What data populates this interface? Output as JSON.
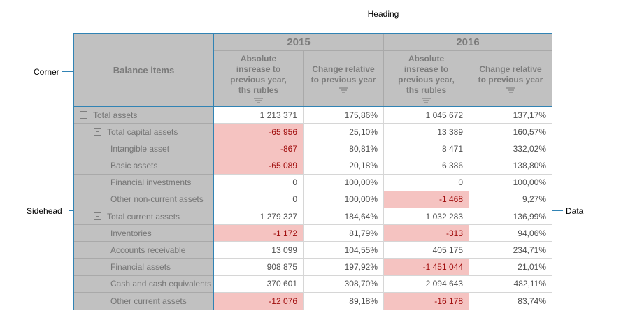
{
  "annotations": {
    "heading": "Heading",
    "corner": "Corner",
    "sidehead": "Sidehead",
    "data": "Data"
  },
  "colors": {
    "accent_blue": "#3183b4",
    "header_background": "#c1c1c1",
    "header_text": "#7b7b7b",
    "negative_cell_background": "#f5c3c1",
    "negative_cell_text": "#a00d0d"
  },
  "icons": {
    "filter_icon": "three shrinking horizontal bars (filter funnel)",
    "collapse_icon": "minus sign in square (collapse tree node)"
  },
  "table": {
    "corner_label": "Balance items",
    "year_groups": [
      {
        "label": "2015"
      },
      {
        "label": "2016"
      }
    ],
    "columns": [
      {
        "group": "2015",
        "label": "Absolute insrease to previous year, ths rubles"
      },
      {
        "group": "2015",
        "label": "Change relative to previous year"
      },
      {
        "group": "2016",
        "label": "Absolute insrease to previous year, ths rubles"
      },
      {
        "group": "2016",
        "label": "Change relative to previous year"
      }
    ],
    "rows": [
      {
        "label": "Total assets",
        "level": 0,
        "expand": true,
        "cells": [
          {
            "v": "1 213 371",
            "neg": false
          },
          {
            "v": "175,86%",
            "neg": false
          },
          {
            "v": "1 045 672",
            "neg": false
          },
          {
            "v": "137,17%",
            "neg": false
          }
        ]
      },
      {
        "label": "Total capital assets",
        "level": 1,
        "expand": true,
        "cells": [
          {
            "v": "-65 956",
            "neg": true
          },
          {
            "v": "25,10%",
            "neg": false
          },
          {
            "v": "13 389",
            "neg": false
          },
          {
            "v": "160,57%",
            "neg": false
          }
        ]
      },
      {
        "label": "Intangible asset",
        "level": 2,
        "expand": false,
        "cells": [
          {
            "v": "-867",
            "neg": true
          },
          {
            "v": "80,81%",
            "neg": false
          },
          {
            "v": "8 471",
            "neg": false
          },
          {
            "v": "332,02%",
            "neg": false
          }
        ]
      },
      {
        "label": "Basic assets",
        "level": 2,
        "expand": false,
        "cells": [
          {
            "v": "-65 089",
            "neg": true
          },
          {
            "v": "20,18%",
            "neg": false
          },
          {
            "v": "6 386",
            "neg": false
          },
          {
            "v": "138,80%",
            "neg": false
          }
        ]
      },
      {
        "label": "Financial investments",
        "level": 2,
        "expand": false,
        "cells": [
          {
            "v": "0",
            "neg": false
          },
          {
            "v": "100,00%",
            "neg": false
          },
          {
            "v": "0",
            "neg": false
          },
          {
            "v": "100,00%",
            "neg": false
          }
        ]
      },
      {
        "label": "Other non-current assets",
        "level": 2,
        "expand": false,
        "cells": [
          {
            "v": "0",
            "neg": false
          },
          {
            "v": "100,00%",
            "neg": false
          },
          {
            "v": "-1 468",
            "neg": true
          },
          {
            "v": "9,27%",
            "neg": false
          }
        ]
      },
      {
        "label": "Total current assets",
        "level": 1,
        "expand": true,
        "cells": [
          {
            "v": "1 279 327",
            "neg": false
          },
          {
            "v": "184,64%",
            "neg": false
          },
          {
            "v": "1 032 283",
            "neg": false
          },
          {
            "v": "136,99%",
            "neg": false
          }
        ]
      },
      {
        "label": "Inventories",
        "level": 2,
        "expand": false,
        "cells": [
          {
            "v": "-1 172",
            "neg": true
          },
          {
            "v": "81,79%",
            "neg": false
          },
          {
            "v": "-313",
            "neg": true
          },
          {
            "v": "94,06%",
            "neg": false
          }
        ]
      },
      {
        "label": "Accounts receivable",
        "level": 2,
        "expand": false,
        "cells": [
          {
            "v": "13 099",
            "neg": false
          },
          {
            "v": "104,55%",
            "neg": false
          },
          {
            "v": "405 175",
            "neg": false
          },
          {
            "v": "234,71%",
            "neg": false
          }
        ]
      },
      {
        "label": "Financial assets",
        "level": 2,
        "expand": false,
        "cells": [
          {
            "v": "908 875",
            "neg": false
          },
          {
            "v": "197,92%",
            "neg": false
          },
          {
            "v": "-1 451 044",
            "neg": true
          },
          {
            "v": "21,01%",
            "neg": false
          }
        ]
      },
      {
        "label": "Cash and cash equivalents",
        "level": 2,
        "expand": false,
        "cells": [
          {
            "v": "370 601",
            "neg": false
          },
          {
            "v": "308,70%",
            "neg": false
          },
          {
            "v": "2 094 643",
            "neg": false
          },
          {
            "v": "482,11%",
            "neg": false
          }
        ]
      },
      {
        "label": "Other current assets",
        "level": 2,
        "expand": false,
        "cells": [
          {
            "v": "-12 076",
            "neg": true
          },
          {
            "v": "89,18%",
            "neg": false
          },
          {
            "v": "-16 178",
            "neg": true
          },
          {
            "v": "83,74%",
            "neg": false
          }
        ]
      }
    ]
  }
}
